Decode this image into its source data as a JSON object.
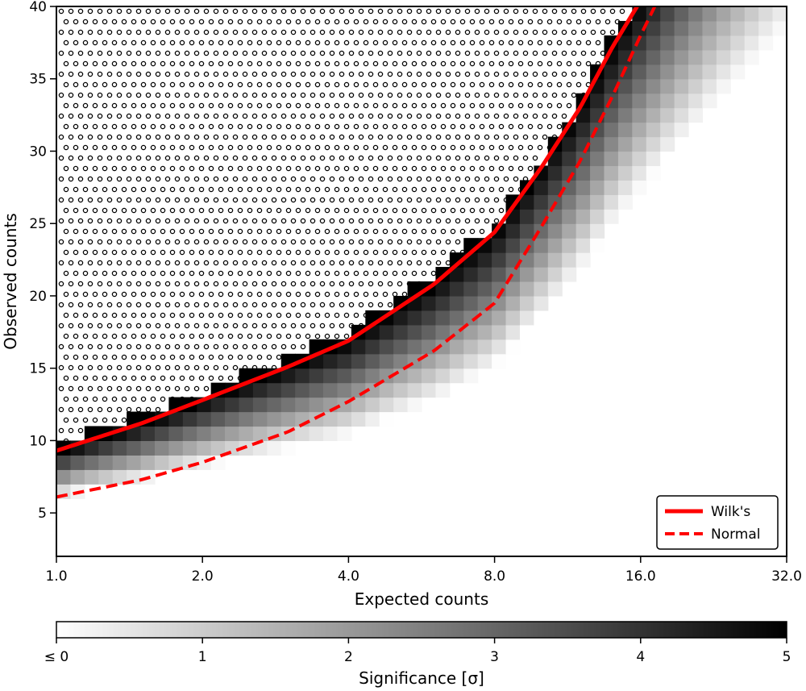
{
  "chart_data": {
    "type": "heatmap",
    "xlabel": "Expected counts",
    "ylabel": "Observed counts",
    "x_scale": "log2",
    "x_range": [
      1.0,
      32.0
    ],
    "y_range": [
      2,
      40
    ],
    "x_ticks": [
      "1.0",
      "2.0",
      "4.0",
      "8.0",
      "16.0",
      "32.0"
    ],
    "x_tick_values": [
      1,
      2,
      4,
      8,
      16,
      32
    ],
    "y_ticks": [
      "5",
      "10",
      "15",
      "20",
      "25",
      "30",
      "35",
      "40"
    ],
    "y_tick_values": [
      5,
      10,
      15,
      20,
      25,
      30,
      35,
      40
    ],
    "colorbar": {
      "label": "Significance [σ]",
      "range": [
        0,
        5
      ],
      "colormap": "white-to-black",
      "tick_labels": [
        "≤ 0",
        "1",
        "2",
        "3",
        "4",
        "5"
      ],
      "tick_values": [
        0,
        1,
        2,
        3,
        4,
        5
      ]
    },
    "saturated_region_marker": "hatched circles",
    "series": [
      {
        "name": "Wilk's",
        "color": "#ff0000",
        "style": "solid",
        "x": [
          1,
          1.5,
          2,
          3,
          4,
          6,
          8,
          10,
          12,
          14,
          16
        ],
        "y": [
          9.3,
          11.2,
          12.8,
          15.1,
          16.9,
          20.8,
          24.4,
          28.9,
          33.0,
          37.2,
          40.4
        ]
      },
      {
        "name": "Normal",
        "color": "#ff0000",
        "style": "dashed",
        "x": [
          1,
          1.5,
          2,
          3,
          4,
          6,
          8,
          10,
          12,
          14,
          16,
          18
        ],
        "y": [
          6.1,
          7.3,
          8.5,
          10.6,
          12.7,
          16.2,
          19.5,
          24.8,
          29.3,
          33.8,
          38.0,
          41.5
        ]
      }
    ],
    "legend_position": "bottom-right"
  }
}
